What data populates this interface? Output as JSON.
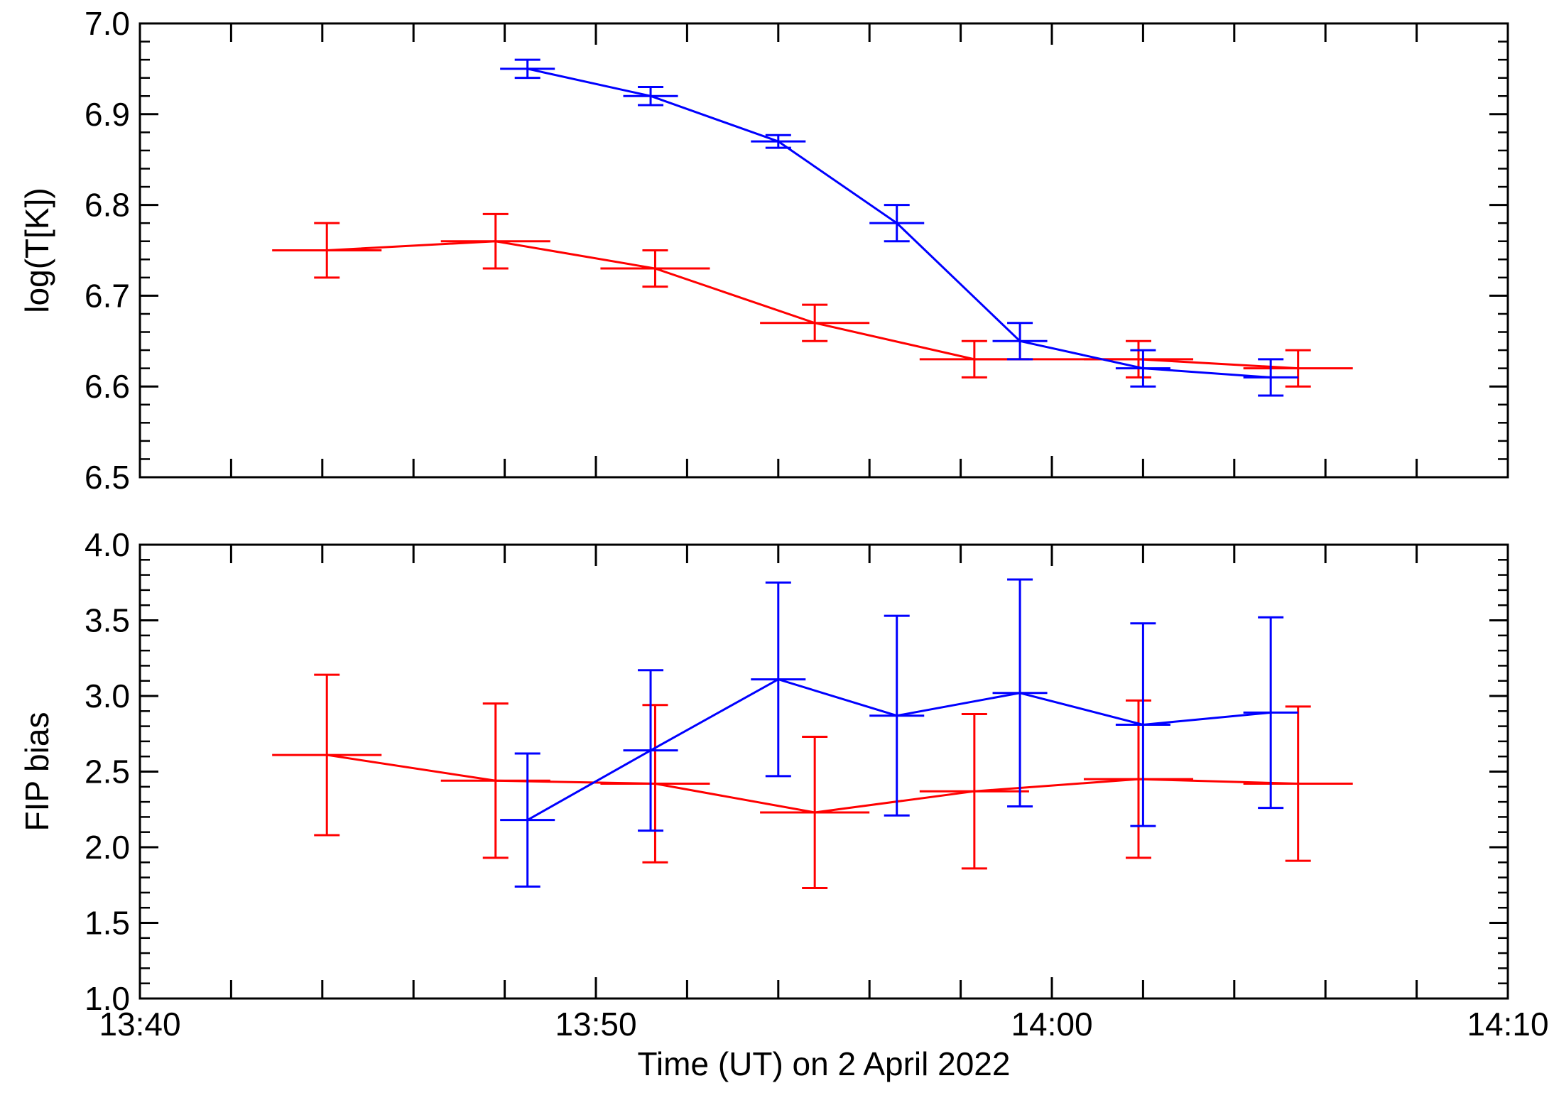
{
  "chart_data": [
    {
      "type": "line",
      "panel": "top",
      "ylabel": "log(T[K])",
      "xlabel": "",
      "xlim_minutes": [
        0,
        30
      ],
      "ylim": [
        6.5,
        7.0
      ],
      "yticks": [
        6.5,
        6.6,
        6.7,
        6.8,
        6.9,
        7.0
      ],
      "ytick_labels": [
        "6.5",
        "6.6",
        "6.7",
        "6.8",
        "6.9",
        "7.0"
      ],
      "series": [
        {
          "name": "red",
          "color": "#ff0000",
          "x": [
            4.1,
            7.8,
            11.3,
            14.8,
            18.3,
            21.9,
            25.4
          ],
          "x_err": [
            1.2,
            1.2,
            1.2,
            1.2,
            1.2,
            1.2,
            1.2
          ],
          "y": [
            6.75,
            6.76,
            6.73,
            6.67,
            6.63,
            6.63,
            6.62
          ],
          "y_err": [
            0.03,
            0.03,
            0.02,
            0.02,
            0.02,
            0.02,
            0.02
          ]
        },
        {
          "name": "blue",
          "color": "#0000ff",
          "x": [
            8.5,
            11.2,
            14.0,
            16.6,
            19.3,
            22.0,
            24.8
          ],
          "x_err": [
            0.6,
            0.6,
            0.6,
            0.6,
            0.6,
            0.6,
            0.6
          ],
          "y": [
            6.95,
            6.92,
            6.87,
            6.78,
            6.65,
            6.62,
            6.61
          ],
          "y_err": [
            0.01,
            0.01,
            0.007,
            0.02,
            0.02,
            0.02,
            0.02
          ]
        }
      ]
    },
    {
      "type": "line",
      "panel": "bottom",
      "ylabel": "FIP bias",
      "xlabel": "Time (UT) on 2 April 2022",
      "xlim_minutes": [
        0,
        30
      ],
      "xticks_minutes": [
        0,
        10,
        20,
        30
      ],
      "xtick_labels": [
        "13:40",
        "13:50",
        "14:00",
        "14:10"
      ],
      "ylim": [
        1.0,
        4.0
      ],
      "yticks": [
        1.0,
        1.5,
        2.0,
        2.5,
        3.0,
        3.5,
        4.0
      ],
      "ytick_labels": [
        "1.0",
        "1.5",
        "2.0",
        "2.5",
        "3.0",
        "3.5",
        "4.0"
      ],
      "series": [
        {
          "name": "red",
          "color": "#ff0000",
          "x": [
            4.1,
            7.8,
            11.3,
            14.8,
            18.3,
            21.9,
            25.4
          ],
          "x_err": [
            1.2,
            1.2,
            1.2,
            1.2,
            1.2,
            1.2,
            1.2
          ],
          "y": [
            2.61,
            2.44,
            2.42,
            2.23,
            2.37,
            2.45,
            2.42
          ],
          "y_lo": [
            2.08,
            1.93,
            1.9,
            1.73,
            1.86,
            1.93,
            1.91
          ],
          "y_hi": [
            3.14,
            2.95,
            2.94,
            2.73,
            2.88,
            2.97,
            2.93
          ]
        },
        {
          "name": "blue",
          "color": "#0000ff",
          "x": [
            8.5,
            11.2,
            14.0,
            16.6,
            19.3,
            22.0,
            24.8
          ],
          "x_err": [
            0.6,
            0.6,
            0.6,
            0.6,
            0.6,
            0.6,
            0.6
          ],
          "y": [
            2.18,
            2.64,
            3.11,
            2.87,
            3.02,
            2.81,
            2.89
          ],
          "y_lo": [
            1.74,
            2.11,
            2.47,
            2.21,
            2.27,
            2.14,
            2.26
          ],
          "y_hi": [
            2.62,
            3.17,
            3.75,
            3.53,
            3.77,
            3.48,
            3.52
          ]
        }
      ]
    }
  ]
}
